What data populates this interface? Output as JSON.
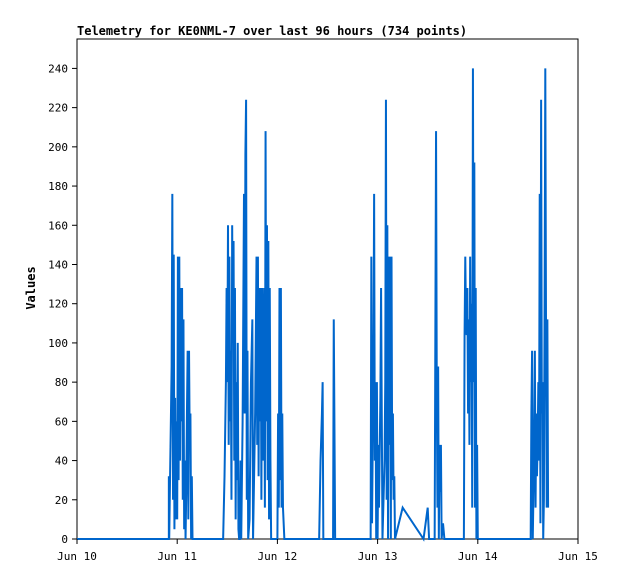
{
  "chart_data": {
    "type": "line",
    "title": "Telemetry for KE0NML-7 over last 96 hours (734 points)",
    "xlabel": "",
    "ylabel": "Values",
    "ylim": [
      0,
      255
    ],
    "yticks": [
      0,
      20,
      40,
      60,
      80,
      100,
      120,
      140,
      160,
      180,
      200,
      220,
      240
    ],
    "xlim": [
      "Jun 10 00:00",
      "Jun 15 00:00"
    ],
    "xticks": [
      "Jun 10",
      "Jun 11",
      "Jun 12",
      "Jun 13",
      "Jun 14",
      "Jun 15"
    ],
    "grid": false,
    "series": [
      {
        "color": "#0066cc",
        "points": [
          [
            "Jun 10 00:00",
            0
          ],
          [
            "Jun 10 22:00",
            0
          ],
          [
            "Jun 10 22:00",
            32
          ],
          [
            "Jun 10 22:05",
            0
          ],
          [
            "Jun 10 22:40",
            88
          ],
          [
            "Jun 10 22:50",
            176
          ],
          [
            "Jun 10 23:00",
            20
          ],
          [
            "Jun 10 23:10",
            145
          ],
          [
            "Jun 10 23:20",
            5
          ],
          [
            "Jun 10 23:30",
            72
          ],
          [
            "Jun 10 23:40",
            10
          ],
          [
            "Jun 10 23:50",
            60
          ],
          [
            "Jun 11 00:00",
            10
          ],
          [
            "Jun 11 00:10",
            144
          ],
          [
            "Jun 11 00:20",
            30
          ],
          [
            "Jun 11 00:30",
            144
          ],
          [
            "Jun 11 00:40",
            40
          ],
          [
            "Jun 11 00:50",
            128
          ],
          [
            "Jun 11 01:00",
            60
          ],
          [
            "Jun 11 01:10",
            128
          ],
          [
            "Jun 11 01:20",
            20
          ],
          [
            "Jun 11 01:30",
            112
          ],
          [
            "Jun 11 01:40",
            5
          ],
          [
            "Jun 11 01:50",
            40
          ],
          [
            "Jun 11 02:00",
            0
          ],
          [
            "Jun 11 02:10",
            24
          ],
          [
            "Jun 11 02:20",
            64
          ],
          [
            "Jun 11 02:30",
            96
          ],
          [
            "Jun 11 02:40",
            10
          ],
          [
            "Jun 11 02:50",
            96
          ],
          [
            "Jun 11 03:00",
            48
          ],
          [
            "Jun 11 03:10",
            64
          ],
          [
            "Jun 11 03:20",
            0
          ],
          [
            "Jun 11 03:30",
            32
          ],
          [
            "Jun 11 03:40",
            0
          ],
          [
            "Jun 11 11:00",
            0
          ],
          [
            "Jun 11 11:20",
            32
          ],
          [
            "Jun 11 11:40",
            80
          ],
          [
            "Jun 11 11:50",
            128
          ],
          [
            "Jun 11 12:00",
            80
          ],
          [
            "Jun 11 12:10",
            160
          ],
          [
            "Jun 11 12:20",
            48
          ],
          [
            "Jun 11 12:30",
            144
          ],
          [
            "Jun 11 12:40",
            60
          ],
          [
            "Jun 11 12:50",
            96
          ],
          [
            "Jun 11 13:00",
            20
          ],
          [
            "Jun 11 13:10",
            160
          ],
          [
            "Jun 11 13:20",
            100
          ],
          [
            "Jun 11 13:30",
            152
          ],
          [
            "Jun 11 13:40",
            40
          ],
          [
            "Jun 11 13:50",
            128
          ],
          [
            "Jun 11 14:00",
            10
          ],
          [
            "Jun 11 14:10",
            80
          ],
          [
            "Jun 11 14:20",
            30
          ],
          [
            "Jun 11 14:30",
            100
          ],
          [
            "Jun 11 14:40",
            5
          ],
          [
            "Jun 11 14:50",
            0
          ],
          [
            "Jun 11 15:00",
            0
          ],
          [
            "Jun 11 15:10",
            40
          ],
          [
            "Jun 11 15:20",
            0
          ],
          [
            "Jun 11 15:40",
            60
          ],
          [
            "Jun 11 16:00",
            176
          ],
          [
            "Jun 11 16:10",
            64
          ],
          [
            "Jun 11 16:20",
            196
          ],
          [
            "Jun 11 16:30",
            224
          ],
          [
            "Jun 11 16:40",
            20
          ],
          [
            "Jun 11 16:50",
            96
          ],
          [
            "Jun 11 17:00",
            0
          ],
          [
            "Jun 11 17:20",
            10
          ],
          [
            "Jun 11 17:40",
            80
          ],
          [
            "Jun 11 18:00",
            112
          ],
          [
            "Jun 11 18:10",
            0
          ],
          [
            "Jun 11 18:40",
            64
          ],
          [
            "Jun 11 19:00",
            144
          ],
          [
            "Jun 11 19:10",
            48
          ],
          [
            "Jun 11 19:20",
            144
          ],
          [
            "Jun 11 19:30",
            32
          ],
          [
            "Jun 11 19:40",
            128
          ],
          [
            "Jun 11 19:50",
            60
          ],
          [
            "Jun 11 20:00",
            128
          ],
          [
            "Jun 11 20:10",
            20
          ],
          [
            "Jun 11 20:20",
            128
          ],
          [
            "Jun 11 20:30",
            90
          ],
          [
            "Jun 11 20:40",
            40
          ],
          [
            "Jun 11 20:50",
            128
          ],
          [
            "Jun 11 21:00",
            16
          ],
          [
            "Jun 11 21:10",
            208
          ],
          [
            "Jun 11 21:20",
            60
          ],
          [
            "Jun 11 21:30",
            160
          ],
          [
            "Jun 11 21:40",
            30
          ],
          [
            "Jun 11 21:50",
            152
          ],
          [
            "Jun 11 22:00",
            10
          ],
          [
            "Jun 11 22:10",
            128
          ],
          [
            "Jun 11 22:20",
            40
          ],
          [
            "Jun 11 22:30",
            0
          ],
          [
            "Jun 12 00:00",
            0
          ],
          [
            "Jun 12 00:10",
            64
          ],
          [
            "Jun 12 00:20",
            16
          ],
          [
            "Jun 12 00:30",
            128
          ],
          [
            "Jun 12 00:40",
            30
          ],
          [
            "Jun 12 00:50",
            128
          ],
          [
            "Jun 12 01:00",
            16
          ],
          [
            "Jun 12 01:10",
            64
          ],
          [
            "Jun 12 01:20",
            16
          ],
          [
            "Jun 12 01:40",
            0
          ],
          [
            "Jun 12 10:00",
            0
          ],
          [
            "Jun 12 10:20",
            40
          ],
          [
            "Jun 12 10:40",
            64
          ],
          [
            "Jun 12 10:50",
            80
          ],
          [
            "Jun 12 11:00",
            0
          ],
          [
            "Jun 12 13:20",
            0
          ],
          [
            "Jun 12 13:30",
            112
          ],
          [
            "Jun 12 13:40",
            56
          ],
          [
            "Jun 12 13:50",
            0
          ],
          [
            "Jun 12 22:20",
            0
          ],
          [
            "Jun 12 22:30",
            144
          ],
          [
            "Jun 12 22:40",
            8
          ],
          [
            "Jun 12 23:00",
            88
          ],
          [
            "Jun 12 23:10",
            176
          ],
          [
            "Jun 12 23:20",
            40
          ],
          [
            "Jun 12 23:30",
            80
          ],
          [
            "Jun 12 23:40",
            0
          ],
          [
            "Jun 12 23:50",
            80
          ],
          [
            "Jun 13 00:00",
            0
          ],
          [
            "Jun 13 00:10",
            48
          ],
          [
            "Jun 13 00:20",
            16
          ],
          [
            "Jun 13 00:40",
            72
          ],
          [
            "Jun 13 00:50",
            128
          ],
          [
            "Jun 13 01:00",
            64
          ],
          [
            "Jun 13 01:10",
            0
          ],
          [
            "Jun 13 01:40",
            40
          ],
          [
            "Jun 13 01:50",
            80
          ],
          [
            "Jun 13 02:00",
            224
          ],
          [
            "Jun 13 02:10",
            20
          ],
          [
            "Jun 13 02:20",
            160
          ],
          [
            "Jun 13 02:30",
            0
          ],
          [
            "Jun 13 02:40",
            144
          ],
          [
            "Jun 13 02:50",
            48
          ],
          [
            "Jun 13 03:00",
            144
          ],
          [
            "Jun 13 03:10",
            0
          ],
          [
            "Jun 13 03:20",
            144
          ],
          [
            "Jun 13 03:30",
            30
          ],
          [
            "Jun 13 03:40",
            64
          ],
          [
            "Jun 13 03:50",
            20
          ],
          [
            "Jun 13 04:00",
            32
          ],
          [
            "Jun 13 04:10",
            0
          ],
          [
            "Jun 13 06:00",
            16
          ],
          [
            "Jun 13 11:00",
            0
          ],
          [
            "Jun 13 12:00",
            16
          ],
          [
            "Jun 13 12:20",
            0
          ],
          [
            "Jun 13 13:40",
            0
          ],
          [
            "Jun 13 13:50",
            104
          ],
          [
            "Jun 13 14:00",
            208
          ],
          [
            "Jun 13 14:10",
            80
          ],
          [
            "Jun 13 14:20",
            16
          ],
          [
            "Jun 13 14:30",
            88
          ],
          [
            "Jun 13 14:40",
            0
          ],
          [
            "Jun 13 14:50",
            48
          ],
          [
            "Jun 13 15:00",
            24
          ],
          [
            "Jun 13 15:10",
            48
          ],
          [
            "Jun 13 15:20",
            0
          ],
          [
            "Jun 13 15:40",
            8
          ],
          [
            "Jun 13 16:00",
            0
          ],
          [
            "Jun 13 20:40",
            0
          ],
          [
            "Jun 13 20:50",
            104
          ],
          [
            "Jun 13 21:00",
            144
          ],
          [
            "Jun 13 21:10",
            112
          ],
          [
            "Jun 13 21:20",
            104
          ],
          [
            "Jun 13 21:30",
            128
          ],
          [
            "Jun 13 21:40",
            64
          ],
          [
            "Jun 13 21:50",
            112
          ],
          [
            "Jun 13 22:00",
            48
          ],
          [
            "Jun 13 22:10",
            144
          ],
          [
            "Jun 13 22:20",
            80
          ],
          [
            "Jun 13 22:30",
            120
          ],
          [
            "Jun 13 22:40",
            16
          ],
          [
            "Jun 13 22:50",
            240
          ],
          [
            "Jun 13 23:00",
            80
          ],
          [
            "Jun 13 23:10",
            192
          ],
          [
            "Jun 13 23:20",
            16
          ],
          [
            "Jun 13 23:30",
            128
          ],
          [
            "Jun 13 23:40",
            0
          ],
          [
            "Jun 13 23:50",
            48
          ],
          [
            "Jun 14 00:00",
            0
          ],
          [
            "Jun 14 12:40",
            0
          ],
          [
            "Jun 14 12:50",
            64
          ],
          [
            "Jun 14 13:00",
            96
          ],
          [
            "Jun 14 13:10",
            0
          ],
          [
            "Jun 14 13:30",
            48
          ],
          [
            "Jun 14 13:40",
            96
          ],
          [
            "Jun 14 13:50",
            16
          ],
          [
            "Jun 14 14:00",
            64
          ],
          [
            "Jun 14 14:10",
            32
          ],
          [
            "Jun 14 14:20",
            48
          ],
          [
            "Jun 14 14:30",
            80
          ],
          [
            "Jun 14 14:40",
            40
          ],
          [
            "Jun 14 14:50",
            176
          ],
          [
            "Jun 14 15:00",
            8
          ],
          [
            "Jun 14 15:10",
            224
          ],
          [
            "Jun 14 15:20",
            64
          ],
          [
            "Jun 14 15:30",
            80
          ],
          [
            "Jun 14 15:40",
            0
          ],
          [
            "Jun 14 15:50",
            20
          ],
          [
            "Jun 14 16:00",
            120
          ],
          [
            "Jun 14 16:10",
            240
          ],
          [
            "Jun 14 16:20",
            112
          ],
          [
            "Jun 14 16:30",
            16
          ],
          [
            "Jun 14 16:40",
            112
          ],
          [
            "Jun 14 16:50",
            16
          ]
        ]
      }
    ]
  }
}
